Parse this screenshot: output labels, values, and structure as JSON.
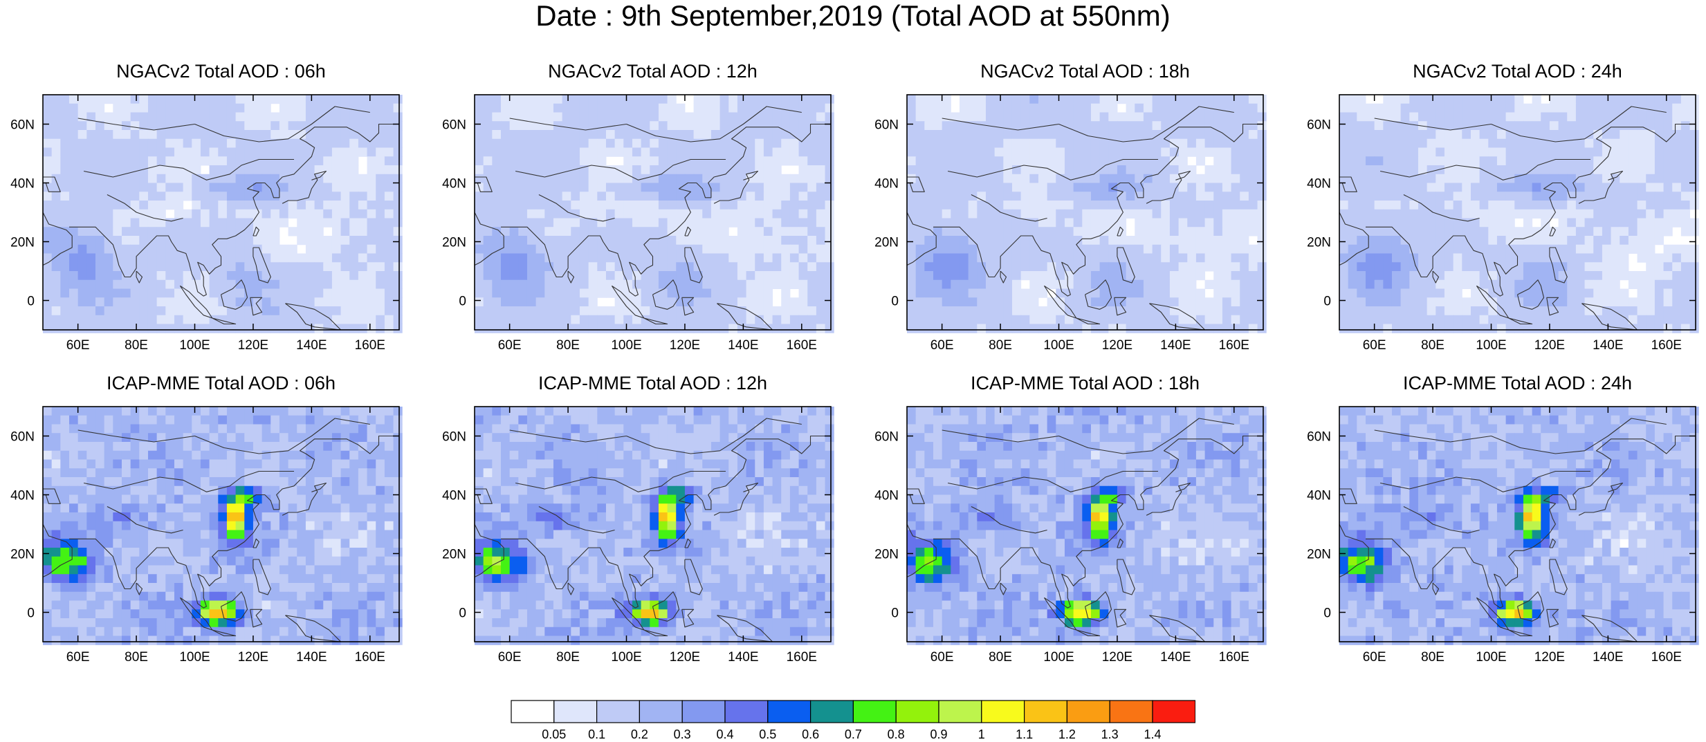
{
  "title": "Date : 9th September,2019 (Total AOD at 550nm)",
  "panels": [
    {
      "title": "NGACv2 Total AOD : 06h",
      "model": "NGACv2",
      "hour": "06h"
    },
    {
      "title": "NGACv2 Total AOD : 12h",
      "model": "NGACv2",
      "hour": "12h"
    },
    {
      "title": "NGACv2 Total AOD : 18h",
      "model": "NGACv2",
      "hour": "18h"
    },
    {
      "title": "NGACv2 Total AOD : 24h",
      "model": "NGACv2",
      "hour": "24h"
    },
    {
      "title": "ICAP-MME Total AOD : 06h",
      "model": "ICAP-MME",
      "hour": "06h"
    },
    {
      "title": "ICAP-MME Total AOD : 12h",
      "model": "ICAP-MME",
      "hour": "12h"
    },
    {
      "title": "ICAP-MME Total AOD : 18h",
      "model": "ICAP-MME",
      "hour": "18h"
    },
    {
      "title": "ICAP-MME Total AOD : 24h",
      "model": "ICAP-MME",
      "hour": "24h"
    }
  ],
  "map_extent": {
    "lon": [
      48,
      170
    ],
    "lat": [
      -10,
      70
    ]
  },
  "lon_ticks": [
    60,
    80,
    100,
    120,
    140,
    160
  ],
  "lon_tick_labels": [
    "60E",
    "80E",
    "100E",
    "120E",
    "140E",
    "160E"
  ],
  "lat_ticks": [
    0,
    20,
    40,
    60
  ],
  "lat_tick_labels": [
    "0",
    "20N",
    "40N",
    "60N"
  ],
  "colorbar": {
    "labels": [
      "0.05",
      "0.1",
      "0.2",
      "0.3",
      "0.4",
      "0.5",
      "0.6",
      "0.7",
      "0.8",
      "0.9",
      "1",
      "1.1",
      "1.2",
      "1.3",
      "1.4"
    ],
    "colors": [
      "#ffffff",
      "#dfe6fb",
      "#bfcbf6",
      "#a1b4f3",
      "#8399f0",
      "#6673ec",
      "#0a5ef0",
      "#14918f",
      "#44f214",
      "#93f20c",
      "#bdf44c",
      "#f8fa1c",
      "#fac316",
      "#fa9d12",
      "#f97414",
      "#fa1d10"
    ]
  }
}
